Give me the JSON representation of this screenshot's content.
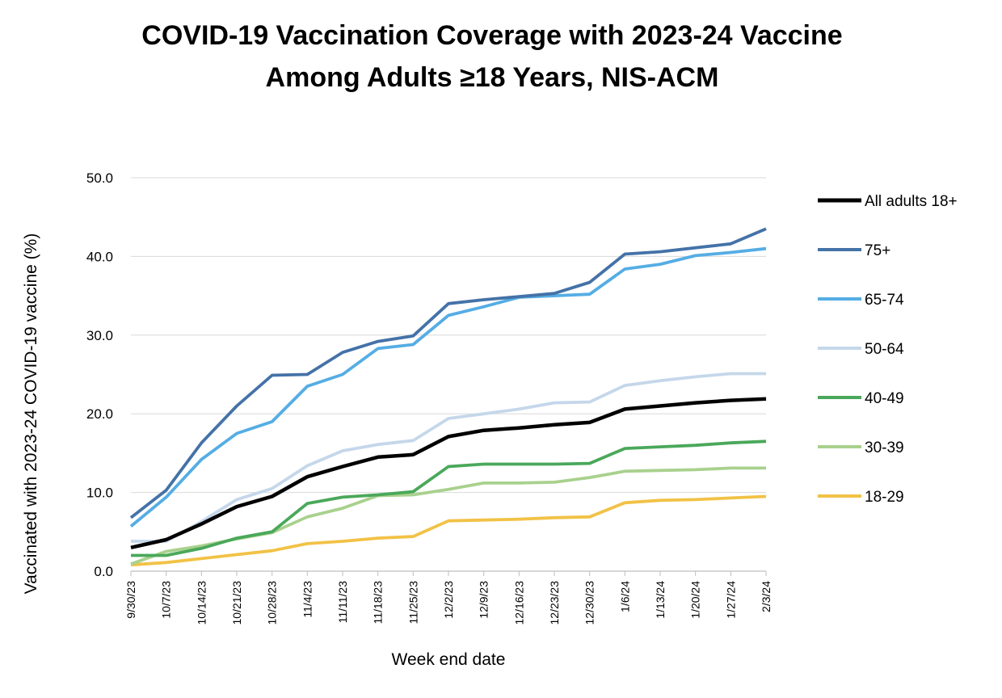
{
  "chart_data": {
    "type": "line",
    "title_lines": [
      "COVID-19 Vaccination Coverage with 2023-24 Vaccine",
      "Among Adults ≥18 Years, NIS-ACM"
    ],
    "xlabel": "Week end date",
    "ylabel": "Vaccinated with 2023-24 COVID-19 vaccine (%)",
    "ylim": [
      0,
      50
    ],
    "y_ticks": [
      "0.0",
      "10.0",
      "20.0",
      "30.0",
      "40.0",
      "50.0"
    ],
    "grid": true,
    "legend_position": "right",
    "x": [
      "9/30/23",
      "10/7/23",
      "10/14/23",
      "10/21/23",
      "10/28/23",
      "11/4/23",
      "11/11/23",
      "11/18/23",
      "11/25/23",
      "12/2/23",
      "12/9/23",
      "12/16/23",
      "12/23/23",
      "12/30/23",
      "1/6/24",
      "1/13/24",
      "1/20/24",
      "1/27/24",
      "2/3/24"
    ],
    "series": [
      {
        "name": "All adults 18+",
        "color": "#000000",
        "values": [
          3.0,
          4.0,
          6.0,
          8.2,
          9.5,
          12.0,
          13.3,
          14.5,
          14.8,
          17.1,
          17.9,
          18.2,
          18.6,
          18.9,
          20.6,
          21.0,
          21.4,
          21.7,
          21.9
        ]
      },
      {
        "name": "75+",
        "color": "#4472a8",
        "values": [
          6.8,
          10.3,
          16.3,
          21.0,
          24.9,
          25.0,
          27.8,
          29.2,
          29.9,
          34.0,
          34.5,
          34.9,
          35.3,
          36.7,
          40.3,
          40.6,
          41.1,
          41.6,
          43.5
        ]
      },
      {
        "name": "65-74",
        "color": "#55ade4",
        "values": [
          5.7,
          9.4,
          14.2,
          17.5,
          19.0,
          23.5,
          25.0,
          28.3,
          28.8,
          32.5,
          33.6,
          34.8,
          35.0,
          35.2,
          38.4,
          39.0,
          40.1,
          40.5,
          41.0
        ]
      },
      {
        "name": "50-64",
        "color": "#c5d7ea",
        "values": [
          3.8,
          3.8,
          6.3,
          9.1,
          10.5,
          13.4,
          15.3,
          16.1,
          16.6,
          19.4,
          20.0,
          20.6,
          21.4,
          21.5,
          23.6,
          24.2,
          24.7,
          25.1,
          25.1
        ]
      },
      {
        "name": "40-49",
        "color": "#4aa85a",
        "values": [
          2.0,
          2.0,
          2.9,
          4.2,
          5.0,
          8.6,
          9.4,
          9.7,
          10.1,
          13.3,
          13.6,
          13.6,
          13.6,
          13.7,
          15.6,
          15.8,
          16.0,
          16.3,
          16.5
        ]
      },
      {
        "name": "30-39",
        "color": "#a9d18e",
        "values": [
          0.9,
          2.5,
          3.2,
          4.1,
          4.9,
          6.9,
          8.0,
          9.6,
          9.7,
          10.4,
          11.2,
          11.2,
          11.3,
          11.9,
          12.7,
          12.8,
          12.9,
          13.1,
          13.1
        ]
      },
      {
        "name": "18-29",
        "color": "#f2c246",
        "values": [
          0.8,
          1.1,
          1.6,
          2.1,
          2.6,
          3.5,
          3.8,
          4.2,
          4.4,
          6.4,
          6.5,
          6.6,
          6.8,
          6.9,
          8.7,
          9.0,
          9.1,
          9.3,
          9.5
        ]
      }
    ]
  }
}
